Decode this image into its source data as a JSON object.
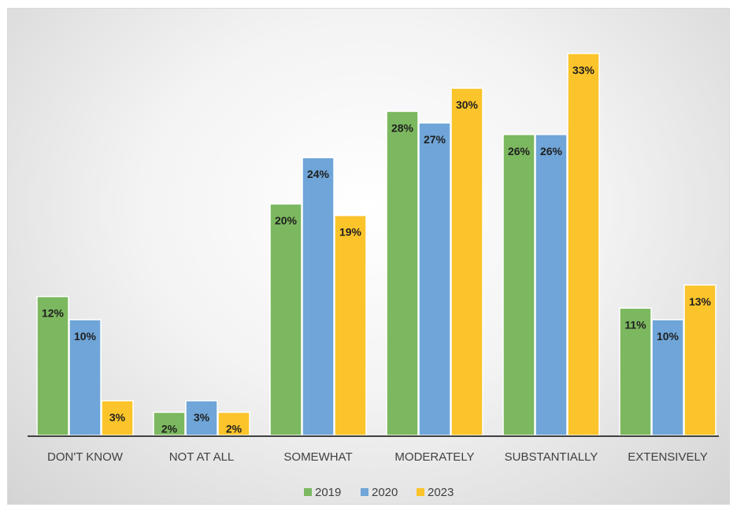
{
  "chart_data": {
    "type": "bar",
    "title": "",
    "xlabel": "",
    "ylabel": "",
    "categories": [
      "DON'T KNOW",
      "NOT AT ALL",
      "SOMEWHAT",
      "MODERATELY",
      "SUBSTANTIALLY",
      "EXTENSIVELY"
    ],
    "series": [
      {
        "name": "2019",
        "color": "#7cb85f",
        "values": [
          12,
          2,
          20,
          28,
          26,
          11
        ],
        "labels": [
          "12%",
          "2%",
          "20%",
          "28%",
          "26%",
          "11%"
        ]
      },
      {
        "name": "2020",
        "color": "#6fa5d8",
        "values": [
          10,
          3,
          24,
          27,
          26,
          10
        ],
        "labels": [
          "10%",
          "3%",
          "24%",
          "27%",
          "26%",
          "10%"
        ]
      },
      {
        "name": "2023",
        "color": "#fbc42a",
        "values": [
          3,
          2,
          19,
          30,
          33,
          13
        ],
        "labels": [
          "3%",
          "2%",
          "19%",
          "30%",
          "33%",
          "13%"
        ]
      }
    ],
    "ylim": [
      0,
      35
    ],
    "grid": false,
    "legend": "bottom"
  }
}
